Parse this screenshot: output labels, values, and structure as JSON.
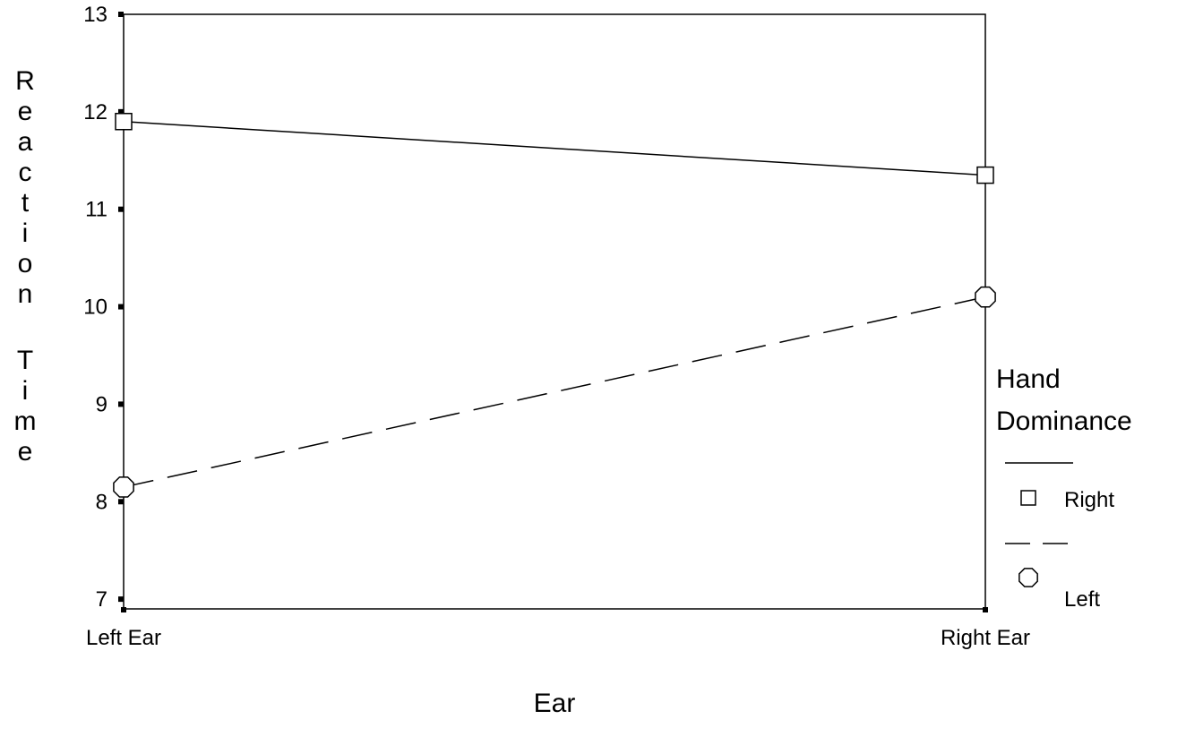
{
  "chart_data": {
    "type": "line",
    "categories": [
      "Left Ear",
      "Right Ear"
    ],
    "series": [
      {
        "name": "Right",
        "values": [
          11.9,
          11.35
        ],
        "line_style": "solid",
        "marker": "square",
        "color": "#000000"
      },
      {
        "name": "Left",
        "values": [
          8.15,
          10.1
        ],
        "line_style": "dashed",
        "marker": "octagon",
        "color": "#000000"
      }
    ],
    "xlabel": "Ear",
    "ylabel": "Reaction Time",
    "ylim": [
      6.9,
      13
    ],
    "yticks": [
      7,
      8,
      9,
      10,
      11,
      12,
      13
    ],
    "legend": {
      "title_lines": [
        "Hand",
        "Dominance"
      ],
      "placement": "right"
    },
    "grid": false
  }
}
